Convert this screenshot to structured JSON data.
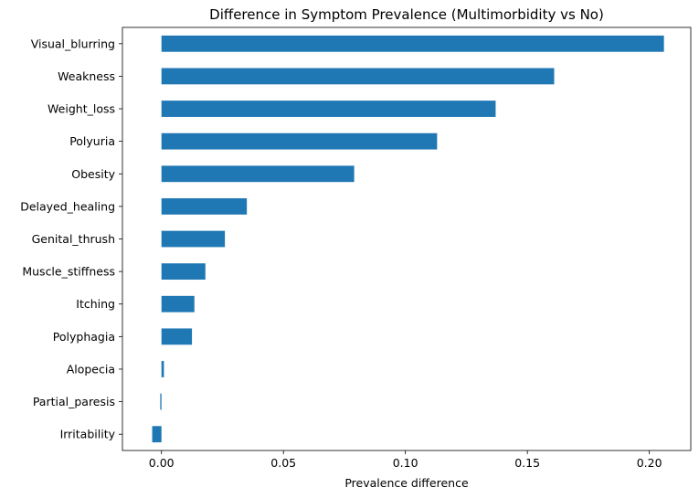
{
  "chart_data": {
    "type": "bar",
    "orientation": "horizontal",
    "title": "Difference in Symptom Prevalence (Multimorbidity vs No)",
    "xlabel": "Prevalence difference",
    "ylabel": "",
    "xlim": [
      -0.016,
      0.217
    ],
    "xticks": [
      0.0,
      0.05,
      0.1,
      0.15,
      0.2
    ],
    "xtick_labels": [
      "0.00",
      "0.05",
      "0.10",
      "0.15",
      "0.20"
    ],
    "grid": false,
    "bar_color": "#1f77b4",
    "categories": [
      "Visual_blurring",
      "Weakness",
      "Weight_loss",
      "Polyuria",
      "Obesity",
      "Delayed_healing",
      "Genital_thrush",
      "Muscle_stiffness",
      "Itching",
      "Polyphagia",
      "Alopecia",
      "Partial_paresis",
      "Irritability"
    ],
    "values": [
      0.206,
      0.161,
      0.137,
      0.113,
      0.079,
      0.035,
      0.026,
      0.018,
      0.0135,
      0.0125,
      0.001,
      -0.0005,
      -0.0038
    ]
  }
}
